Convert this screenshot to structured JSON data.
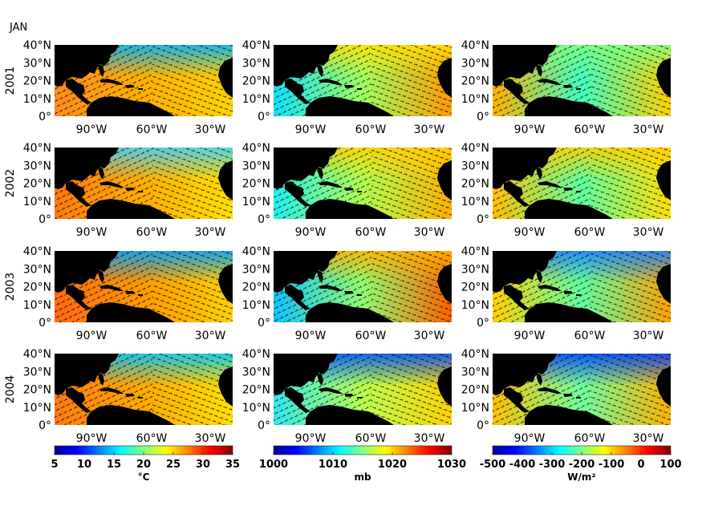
{
  "figure": {
    "month_label": "JAN",
    "years": [
      "2001",
      "2002",
      "2003",
      "2004"
    ],
    "lat_ticks": [
      "0°",
      "10°N",
      "20°N",
      "30°N",
      "40°N"
    ],
    "lon_ticks": [
      "90°W",
      "60°W",
      "30°W"
    ],
    "overlay": "wind vectors"
  },
  "panels_columns": [
    {
      "variable": "sea-surface-temperature",
      "colorbar": {
        "min": 5,
        "max": 35,
        "ticks": [
          "5",
          "10",
          "15",
          "20",
          "25",
          "30",
          "35"
        ],
        "label": "°C"
      }
    },
    {
      "variable": "sea-level-pressure",
      "colorbar": {
        "min": 1000,
        "max": 1030,
        "ticks": [
          "1000",
          "1010",
          "1020",
          "1030"
        ],
        "label": "mb"
      }
    },
    {
      "variable": "net-heat-flux",
      "colorbar": {
        "min": -500,
        "max": 100,
        "ticks": [
          "-500",
          "-400",
          "-300",
          "-200",
          "-100",
          "0",
          "100"
        ],
        "label": "W/m²"
      }
    }
  ],
  "colors": {
    "land": "#000000",
    "colormap": "jet"
  }
}
